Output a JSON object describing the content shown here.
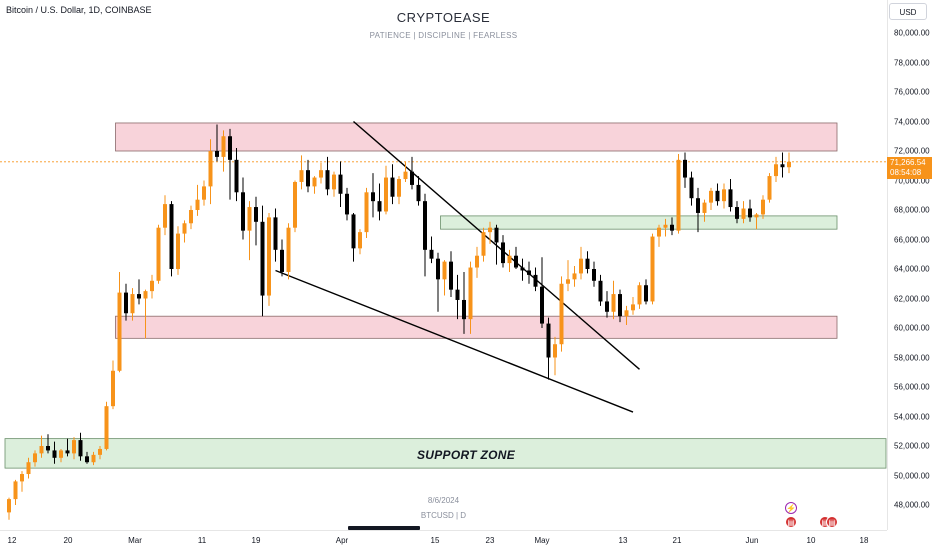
{
  "header": {
    "symbol_title": "Bitcoin / U.S. Dollar, 1D, COINBASE",
    "brand": "CRYPTOEASE",
    "tagline": "PATIENCE  |  DISCIPLINE  |  FEARLESS"
  },
  "price_axis": {
    "currency_button": "USD",
    "ticks": [
      "80,000.00",
      "78,000.00",
      "76,000.00",
      "74,000.00",
      "72,000.00",
      "70,000.00",
      "68,000.00",
      "66,000.00",
      "64,000.00",
      "62,000.00",
      "60,000.00",
      "58,000.00",
      "56,000.00",
      "54,000.00",
      "52,000.00",
      "50,000.00",
      "48,000.00"
    ],
    "current_price": "71,266.54",
    "countdown": "08:54:08"
  },
  "time_axis": {
    "ticks": [
      "12",
      "20",
      "Mar",
      "11",
      "19",
      "Apr",
      "15",
      "23",
      "May",
      "13",
      "21",
      "Jun",
      "10",
      "18"
    ]
  },
  "annotations": {
    "support_zone": "SUPPORT ZONE",
    "date": "8/6/2024",
    "symbol": "BTCUSD  |  D"
  },
  "events": {
    "bolt_icon": "lightning-icon",
    "flag_icon": "us-flag-icon"
  },
  "colors": {
    "up_candle": "#f7931a",
    "down_candle": "#000000",
    "resistance_zone": "#f8d3da",
    "support_zone": "#dcefdc",
    "current_price_line": "#f7931a"
  },
  "chart_data": {
    "type": "candlestick",
    "symbol": "BTCUSD",
    "timeframe": "1D",
    "y_range": [
      47000,
      81000
    ],
    "candles": [
      {
        "o": 47500,
        "h": 48500,
        "l": 47000,
        "c": 48400
      },
      {
        "o": 48400,
        "h": 49700,
        "l": 48000,
        "c": 49600
      },
      {
        "o": 49600,
        "h": 50300,
        "l": 48900,
        "c": 50100
      },
      {
        "o": 50100,
        "h": 51200,
        "l": 49800,
        "c": 50900
      },
      {
        "o": 50900,
        "h": 51700,
        "l": 50600,
        "c": 51500
      },
      {
        "o": 51500,
        "h": 52700,
        "l": 51200,
        "c": 52000
      },
      {
        "o": 52000,
        "h": 52800,
        "l": 51500,
        "c": 51700
      },
      {
        "o": 51700,
        "h": 52300,
        "l": 50800,
        "c": 51200
      },
      {
        "o": 51200,
        "h": 51800,
        "l": 50900,
        "c": 51700
      },
      {
        "o": 51700,
        "h": 52500,
        "l": 51300,
        "c": 51500
      },
      {
        "o": 51500,
        "h": 52600,
        "l": 51100,
        "c": 52400
      },
      {
        "o": 52400,
        "h": 52900,
        "l": 51000,
        "c": 51300
      },
      {
        "o": 51300,
        "h": 51600,
        "l": 50800,
        "c": 50900
      },
      {
        "o": 50900,
        "h": 51600,
        "l": 50700,
        "c": 51400
      },
      {
        "o": 51400,
        "h": 52000,
        "l": 51100,
        "c": 51800
      },
      {
        "o": 51800,
        "h": 55000,
        "l": 51700,
        "c": 54700
      },
      {
        "o": 54700,
        "h": 57800,
        "l": 54500,
        "c": 57100
      },
      {
        "o": 57100,
        "h": 63800,
        "l": 57000,
        "c": 62400
      },
      {
        "o": 62400,
        "h": 63000,
        "l": 60500,
        "c": 61000
      },
      {
        "o": 61000,
        "h": 62700,
        "l": 60500,
        "c": 62300
      },
      {
        "o": 62300,
        "h": 63300,
        "l": 61600,
        "c": 62000
      },
      {
        "o": 62000,
        "h": 62600,
        "l": 59300,
        "c": 62500
      },
      {
        "o": 62500,
        "h": 63600,
        "l": 62000,
        "c": 63200
      },
      {
        "o": 63200,
        "h": 67000,
        "l": 63000,
        "c": 66800
      },
      {
        "o": 66800,
        "h": 69000,
        "l": 66300,
        "c": 68400
      },
      {
        "o": 68400,
        "h": 68600,
        "l": 63500,
        "c": 64000
      },
      {
        "o": 64000,
        "h": 66900,
        "l": 63600,
        "c": 66400
      },
      {
        "o": 66400,
        "h": 67300,
        "l": 65800,
        "c": 67100
      },
      {
        "o": 67100,
        "h": 68300,
        "l": 66700,
        "c": 68000
      },
      {
        "o": 68000,
        "h": 69700,
        "l": 67600,
        "c": 68700
      },
      {
        "o": 68700,
        "h": 70000,
        "l": 68300,
        "c": 69600
      },
      {
        "o": 69600,
        "h": 72800,
        "l": 68400,
        "c": 72000
      },
      {
        "o": 72000,
        "h": 73800,
        "l": 71300,
        "c": 71600
      },
      {
        "o": 71600,
        "h": 73400,
        "l": 70600,
        "c": 73000
      },
      {
        "o": 73000,
        "h": 73500,
        "l": 68700,
        "c": 71400
      },
      {
        "o": 71400,
        "h": 72200,
        "l": 68600,
        "c": 69200
      },
      {
        "o": 69200,
        "h": 70200,
        "l": 66000,
        "c": 66600
      },
      {
        "o": 66600,
        "h": 68600,
        "l": 64600,
        "c": 68200
      },
      {
        "o": 68200,
        "h": 68900,
        "l": 65600,
        "c": 67200
      },
      {
        "o": 67200,
        "h": 68300,
        "l": 60800,
        "c": 62200
      },
      {
        "o": 62200,
        "h": 67800,
        "l": 61500,
        "c": 67500
      },
      {
        "o": 67500,
        "h": 68100,
        "l": 64500,
        "c": 65300
      },
      {
        "o": 65300,
        "h": 66000,
        "l": 63500,
        "c": 63800
      },
      {
        "o": 63800,
        "h": 67100,
        "l": 63300,
        "c": 66800
      },
      {
        "o": 66800,
        "h": 70000,
        "l": 66500,
        "c": 69900
      },
      {
        "o": 69900,
        "h": 71700,
        "l": 69400,
        "c": 70700
      },
      {
        "o": 70700,
        "h": 71400,
        "l": 69200,
        "c": 69600
      },
      {
        "o": 69600,
        "h": 70300,
        "l": 69100,
        "c": 70200
      },
      {
        "o": 70200,
        "h": 71200,
        "l": 69800,
        "c": 70700
      },
      {
        "o": 70700,
        "h": 71600,
        "l": 69000,
        "c": 69400
      },
      {
        "o": 69400,
        "h": 70600,
        "l": 68900,
        "c": 70400
      },
      {
        "o": 70400,
        "h": 71300,
        "l": 68200,
        "c": 69100
      },
      {
        "o": 69100,
        "h": 69500,
        "l": 67300,
        "c": 67700
      },
      {
        "o": 67700,
        "h": 67800,
        "l": 64500,
        "c": 65400
      },
      {
        "o": 65400,
        "h": 66700,
        "l": 65000,
        "c": 66500
      },
      {
        "o": 66500,
        "h": 69500,
        "l": 66100,
        "c": 69200
      },
      {
        "o": 69200,
        "h": 70500,
        "l": 67500,
        "c": 68600
      },
      {
        "o": 68600,
        "h": 69800,
        "l": 67300,
        "c": 67900
      },
      {
        "o": 67900,
        "h": 71000,
        "l": 67700,
        "c": 70200
      },
      {
        "o": 70200,
        "h": 71100,
        "l": 68400,
        "c": 68900
      },
      {
        "o": 68900,
        "h": 70300,
        "l": 68400,
        "c": 70100
      },
      {
        "o": 70100,
        "h": 71300,
        "l": 69900,
        "c": 70600
      },
      {
        "o": 70600,
        "h": 71600,
        "l": 69400,
        "c": 69700
      },
      {
        "o": 69700,
        "h": 70300,
        "l": 68300,
        "c": 68600
      },
      {
        "o": 68600,
        "h": 69100,
        "l": 63500,
        "c": 65300
      },
      {
        "o": 65300,
        "h": 66200,
        "l": 64400,
        "c": 64700
      },
      {
        "o": 64700,
        "h": 65100,
        "l": 61100,
        "c": 63300
      },
      {
        "o": 63300,
        "h": 64600,
        "l": 62200,
        "c": 64500
      },
      {
        "o": 64500,
        "h": 65200,
        "l": 62100,
        "c": 62600
      },
      {
        "o": 62600,
        "h": 63600,
        "l": 60600,
        "c": 61900
      },
      {
        "o": 61900,
        "h": 63800,
        "l": 59600,
        "c": 60600
      },
      {
        "o": 60600,
        "h": 64500,
        "l": 59600,
        "c": 64100
      },
      {
        "o": 64100,
        "h": 65500,
        "l": 63400,
        "c": 64900
      },
      {
        "o": 64900,
        "h": 66800,
        "l": 64500,
        "c": 66500
      },
      {
        "o": 66500,
        "h": 67200,
        "l": 65700,
        "c": 66800
      },
      {
        "o": 66800,
        "h": 67000,
        "l": 64300,
        "c": 65800
      },
      {
        "o": 65800,
        "h": 66300,
        "l": 64100,
        "c": 64400
      },
      {
        "o": 64400,
        "h": 65300,
        "l": 63800,
        "c": 64900
      },
      {
        "o": 64900,
        "h": 65500,
        "l": 64000,
        "c": 64100
      },
      {
        "o": 64100,
        "h": 64700,
        "l": 63200,
        "c": 63900
      },
      {
        "o": 63900,
        "h": 64500,
        "l": 63000,
        "c": 63600
      },
      {
        "o": 63600,
        "h": 64100,
        "l": 62500,
        "c": 62800
      },
      {
        "o": 62800,
        "h": 64800,
        "l": 60000,
        "c": 60300
      },
      {
        "o": 60300,
        "h": 60700,
        "l": 56500,
        "c": 58000
      },
      {
        "o": 58000,
        "h": 59400,
        "l": 56800,
        "c": 58900
      },
      {
        "o": 58900,
        "h": 63500,
        "l": 58400,
        "c": 63000
      },
      {
        "o": 63000,
        "h": 64600,
        "l": 62500,
        "c": 63300
      },
      {
        "o": 63300,
        "h": 64200,
        "l": 62800,
        "c": 63700
      },
      {
        "o": 63700,
        "h": 65500,
        "l": 63300,
        "c": 64700
      },
      {
        "o": 64700,
        "h": 65200,
        "l": 63700,
        "c": 64000
      },
      {
        "o": 64000,
        "h": 64500,
        "l": 62800,
        "c": 63200
      },
      {
        "o": 63200,
        "h": 63600,
        "l": 61500,
        "c": 61800
      },
      {
        "o": 61800,
        "h": 62500,
        "l": 60700,
        "c": 61100
      },
      {
        "o": 61100,
        "h": 63200,
        "l": 60600,
        "c": 62300
      },
      {
        "o": 62300,
        "h": 62600,
        "l": 60400,
        "c": 60800
      },
      {
        "o": 60800,
        "h": 61500,
        "l": 60200,
        "c": 61200
      },
      {
        "o": 61200,
        "h": 62100,
        "l": 60900,
        "c": 61600
      },
      {
        "o": 61600,
        "h": 63100,
        "l": 61300,
        "c": 62900
      },
      {
        "o": 62900,
        "h": 63300,
        "l": 61600,
        "c": 61800
      },
      {
        "o": 61800,
        "h": 66400,
        "l": 61600,
        "c": 66200
      },
      {
        "o": 66200,
        "h": 67000,
        "l": 65500,
        "c": 66800
      },
      {
        "o": 66800,
        "h": 67400,
        "l": 66200,
        "c": 67000
      },
      {
        "o": 67000,
        "h": 67500,
        "l": 66300,
        "c": 66600
      },
      {
        "o": 66600,
        "h": 71800,
        "l": 66400,
        "c": 71400
      },
      {
        "o": 71400,
        "h": 71900,
        "l": 69500,
        "c": 70200
      },
      {
        "o": 70200,
        "h": 70600,
        "l": 68300,
        "c": 68800
      },
      {
        "o": 68800,
        "h": 69500,
        "l": 66500,
        "c": 67800
      },
      {
        "o": 67800,
        "h": 68700,
        "l": 67200,
        "c": 68500
      },
      {
        "o": 68500,
        "h": 69500,
        "l": 68000,
        "c": 69300
      },
      {
        "o": 69300,
        "h": 69800,
        "l": 68300,
        "c": 68600
      },
      {
        "o": 68600,
        "h": 69800,
        "l": 68100,
        "c": 69400
      },
      {
        "o": 69400,
        "h": 70100,
        "l": 67900,
        "c": 68200
      },
      {
        "o": 68200,
        "h": 68600,
        "l": 67100,
        "c": 67400
      },
      {
        "o": 67400,
        "h": 68600,
        "l": 67100,
        "c": 68100
      },
      {
        "o": 68100,
        "h": 68700,
        "l": 67200,
        "c": 67500
      },
      {
        "o": 67500,
        "h": 67800,
        "l": 66700,
        "c": 67700
      },
      {
        "o": 67700,
        "h": 69000,
        "l": 67400,
        "c": 68700
      },
      {
        "o": 68700,
        "h": 70500,
        "l": 68500,
        "c": 70300
      },
      {
        "o": 70300,
        "h": 71600,
        "l": 69900,
        "c": 71100
      },
      {
        "o": 71100,
        "h": 71900,
        "l": 70200,
        "c": 70900
      },
      {
        "o": 70900,
        "h": 71900,
        "l": 70500,
        "c": 71266
      }
    ],
    "zones": [
      {
        "name": "resistance",
        "from": 72000,
        "to": 73900,
        "start_index": 17,
        "color": "#f8d3da"
      },
      {
        "name": "mid-range",
        "from": 59300,
        "to": 60800,
        "start_index": 17,
        "color": "#f8d3da"
      },
      {
        "name": "flag-breakout",
        "from": 66700,
        "to": 67600,
        "start_index": 67,
        "color": "#dcefdc"
      },
      {
        "name": "support",
        "from": 50500,
        "to": 52500,
        "start_index": 0,
        "color": "#dcefdc"
      }
    ],
    "trendlines": [
      {
        "from_index": 53,
        "from_price": 74000,
        "to_index": 97,
        "to_price": 57200
      },
      {
        "from_index": 41,
        "from_price": 63900,
        "to_index": 96,
        "to_price": 54300
      }
    ],
    "current_price": 71266.54
  }
}
